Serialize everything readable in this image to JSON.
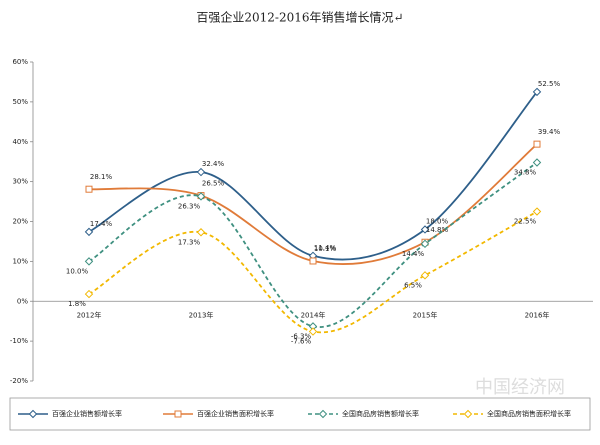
{
  "chart_data": {
    "type": "line",
    "title": "百强企业2012-2016年销售增长情况↵",
    "watermark": "中国经济网",
    "categories": [
      "2012年",
      "2013年",
      "2014年",
      "2015年",
      "2016年"
    ],
    "ylim": [
      -20,
      60
    ],
    "yticks": [
      {
        "value": -20,
        "label": "-20%"
      },
      {
        "value": -10,
        "label": "-10%"
      },
      {
        "value": 0,
        "label": "0%"
      },
      {
        "value": 10,
        "label": "10%"
      },
      {
        "value": 20,
        "label": "20%"
      },
      {
        "value": 30,
        "label": "30%"
      },
      {
        "value": 40,
        "label": "40%"
      },
      {
        "value": 50,
        "label": "50%"
      },
      {
        "value": 60,
        "label": "60%"
      }
    ],
    "series": [
      {
        "name": "百强企业销售额增长率",
        "color": "#2e5f8a",
        "marker": "diamond",
        "dashed": false,
        "values": [
          17.4,
          32.4,
          11.4,
          18.0,
          52.5
        ],
        "value_labels": [
          "17.4%",
          "32.4%",
          "11.4%",
          "18.0%",
          "52.5%"
        ]
      },
      {
        "name": "百强企业销售面积增长率",
        "color": "#e07b39",
        "marker": "square",
        "dashed": false,
        "values": [
          28.1,
          26.5,
          10.1,
          14.8,
          39.4
        ],
        "value_labels": [
          "28.1%",
          "26.5%",
          "10.1%",
          "14.8%",
          "39.4%"
        ]
      },
      {
        "name": "全国商品房销售额增长率",
        "color": "#3f9080",
        "marker": "diamond",
        "dashed": true,
        "values": [
          10.0,
          26.3,
          -6.3,
          14.4,
          34.8
        ],
        "value_labels": [
          "10.0%",
          "26.3%",
          "-6.3%",
          "14.4%",
          "34.8%"
        ]
      },
      {
        "name": "全国商品房销售面积增长率",
        "color": "#f2b800",
        "marker": "diamond",
        "dashed": true,
        "values": [
          1.8,
          17.3,
          -7.6,
          6.5,
          22.5
        ],
        "value_labels": [
          "1.8%",
          "17.3%",
          "-7.6%",
          "6.5%",
          "22.5%"
        ]
      }
    ]
  }
}
